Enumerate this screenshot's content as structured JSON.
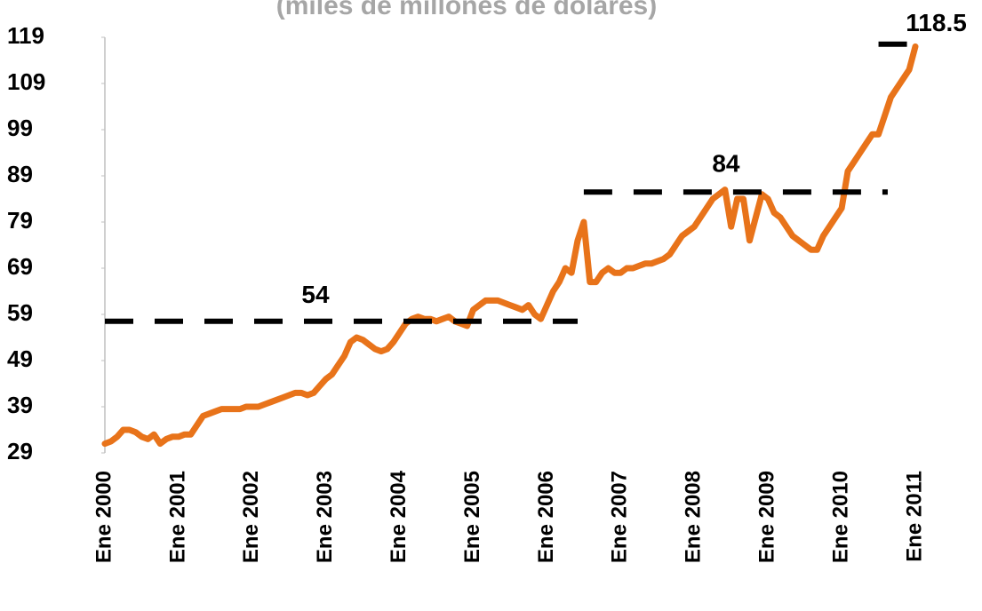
{
  "chart_data": {
    "type": "line",
    "title": "(miles de millones de dólares)",
    "categories": [
      "Ene 2000",
      null,
      null,
      null,
      null,
      null,
      null,
      null,
      null,
      null,
      null,
      null,
      "Ene 2001",
      null,
      null,
      null,
      null,
      null,
      null,
      null,
      null,
      null,
      null,
      null,
      "Ene 2002",
      null,
      null,
      null,
      null,
      null,
      null,
      null,
      null,
      null,
      null,
      null,
      "Ene 2003",
      null,
      null,
      null,
      null,
      null,
      null,
      null,
      null,
      null,
      null,
      null,
      "Ene 2004",
      null,
      null,
      null,
      null,
      null,
      null,
      null,
      null,
      null,
      null,
      null,
      "Ene 2005",
      null,
      null,
      null,
      null,
      null,
      null,
      null,
      null,
      null,
      null,
      null,
      "Ene 2006",
      null,
      null,
      null,
      null,
      null,
      null,
      null,
      null,
      null,
      null,
      null,
      "Ene 2007",
      null,
      null,
      null,
      null,
      null,
      null,
      null,
      null,
      null,
      null,
      null,
      "Ene 2008",
      null,
      null,
      null,
      null,
      null,
      null,
      null,
      null,
      null,
      null,
      null,
      "Ene 2009",
      null,
      null,
      null,
      null,
      null,
      null,
      null,
      null,
      null,
      null,
      null,
      "Ene 2010",
      null,
      null,
      null,
      null,
      null,
      null,
      null,
      null,
      null,
      null,
      null,
      "Ene 2011"
    ],
    "series": [
      {
        "color": "#e8731a",
        "values": [
          31,
          31.5,
          32.5,
          34,
          34,
          33.5,
          32.5,
          32,
          33,
          31,
          32,
          32.5,
          32.5,
          33,
          33,
          35,
          37,
          37.5,
          38,
          38.5,
          38.5,
          38.5,
          38.5,
          39,
          39,
          39,
          39.5,
          40,
          40.5,
          41,
          41.5,
          42,
          42,
          41.5,
          42,
          43.5,
          45,
          46,
          48,
          50,
          53,
          54,
          53.5,
          52.5,
          51.5,
          51,
          51.5,
          53,
          55,
          57,
          58,
          58.5,
          58,
          58,
          57.5,
          58,
          58.5,
          57.5,
          57,
          56.5,
          60,
          61,
          62,
          62,
          62,
          61.5,
          61,
          60.5,
          60,
          61,
          59,
          58,
          61,
          64,
          66,
          69,
          68,
          75,
          79,
          66,
          66,
          68,
          69,
          68,
          68,
          69,
          69,
          69.5,
          70,
          70,
          70.5,
          71,
          72,
          74,
          76,
          77,
          78,
          80,
          82,
          84,
          85,
          86,
          78,
          84,
          84,
          75,
          80,
          85,
          84,
          81,
          80,
          78,
          76,
          75,
          74,
          73,
          73,
          76,
          78,
          80,
          82,
          90,
          92,
          94,
          96,
          98,
          98,
          102,
          106,
          108,
          110,
          112,
          117
        ]
      }
    ],
    "reference_lines": [
      {
        "label": "54",
        "value": 57.5,
        "start": 0,
        "end": 77
      },
      {
        "label": "84",
        "value": 85.5,
        "start": 78,
        "end": 127.5
      },
      {
        "label": "118.5",
        "value": 117.5,
        "start": 126,
        "end": 133.5
      }
    ],
    "ylim": [
      29,
      119
    ],
    "yticks": [
      29,
      39,
      49,
      59,
      69,
      79,
      89,
      99,
      109,
      119
    ]
  }
}
